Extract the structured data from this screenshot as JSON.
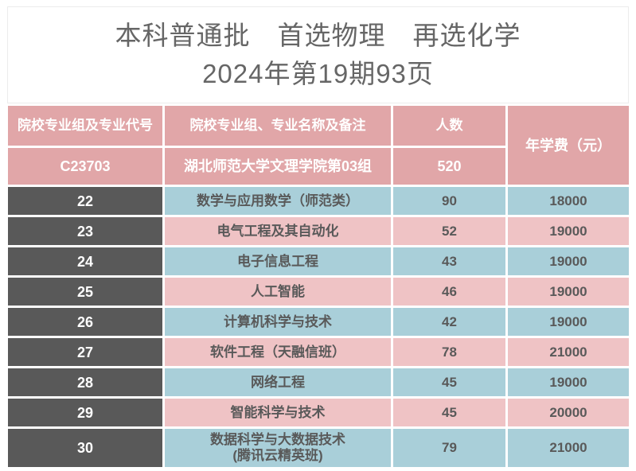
{
  "page": {
    "title_line1": "本科普通批　首选物理　再选化学",
    "title_line2": "2024年第19期93页"
  },
  "table": {
    "headers": {
      "col_code": "院校专业组及专业代号",
      "col_name": "院校专业组、专业名称及备注",
      "col_count": "人数",
      "col_fee": "年学费（元）"
    },
    "group_row": {
      "code": "C23703",
      "name": "湖北师范大学文理学院第03组",
      "count": "520"
    },
    "rows": [
      {
        "code": "22",
        "name": "数学与应用数学（师范类）",
        "note": "",
        "count": "90",
        "fee": "18000"
      },
      {
        "code": "23",
        "name": "电气工程及其自动化",
        "note": "",
        "count": "52",
        "fee": "19000"
      },
      {
        "code": "24",
        "name": "电子信息工程",
        "note": "",
        "count": "43",
        "fee": "19000"
      },
      {
        "code": "25",
        "name": "人工智能",
        "note": "",
        "count": "46",
        "fee": "19000"
      },
      {
        "code": "26",
        "name": "计算机科学与技术",
        "note": "",
        "count": "42",
        "fee": "19000"
      },
      {
        "code": "27",
        "name": "软件工程（天融信班）",
        "note": "",
        "count": "78",
        "fee": "21000"
      },
      {
        "code": "28",
        "name": "网络工程",
        "note": "",
        "count": "45",
        "fee": "19000"
      },
      {
        "code": "29",
        "name": "智能科学与技术",
        "note": "",
        "count": "45",
        "fee": "20000"
      },
      {
        "code": "30",
        "name": "数据科学与大数据技术",
        "note": "(腾讯云精英班)",
        "count": "79",
        "fee": "21000"
      }
    ],
    "colors": {
      "header_pink": "#e1a6a8",
      "row_pink": "#efc3c5",
      "row_blue": "#a9cfd9",
      "code_column_dark": "#595959",
      "cell_text_dark": "#595959",
      "cell_text_light": "#ffffff",
      "title_text": "#666666"
    }
  }
}
